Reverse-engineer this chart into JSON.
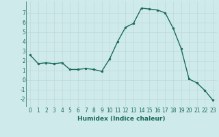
{
  "x": [
    0,
    1,
    2,
    3,
    4,
    5,
    6,
    7,
    8,
    9,
    10,
    11,
    12,
    13,
    14,
    15,
    16,
    17,
    18,
    19,
    20,
    21,
    22,
    23
  ],
  "y": [
    2.6,
    1.7,
    1.8,
    1.7,
    1.8,
    1.1,
    1.1,
    1.2,
    1.1,
    0.9,
    2.2,
    4.0,
    5.5,
    5.9,
    7.5,
    7.4,
    7.3,
    7.0,
    5.4,
    3.3,
    0.1,
    -0.3,
    -1.1,
    -2.1
  ],
  "line_color": "#1a6b5a",
  "marker": "o",
  "marker_size": 2,
  "bg_color": "#ceeaea",
  "grid_color": "#c0d8d8",
  "xlabel": "Humidex (Indice chaleur)",
  "xlim": [
    -0.5,
    23.5
  ],
  "ylim": [
    -2.8,
    8.2
  ],
  "xticks": [
    0,
    1,
    2,
    3,
    4,
    5,
    6,
    7,
    8,
    9,
    10,
    11,
    12,
    13,
    14,
    15,
    16,
    17,
    18,
    19,
    20,
    21,
    22,
    23
  ],
  "yticks": [
    -2,
    -1,
    0,
    1,
    2,
    3,
    4,
    5,
    6,
    7
  ],
  "tick_fontsize": 5.5,
  "xlabel_fontsize": 6.5,
  "linewidth": 1.0
}
